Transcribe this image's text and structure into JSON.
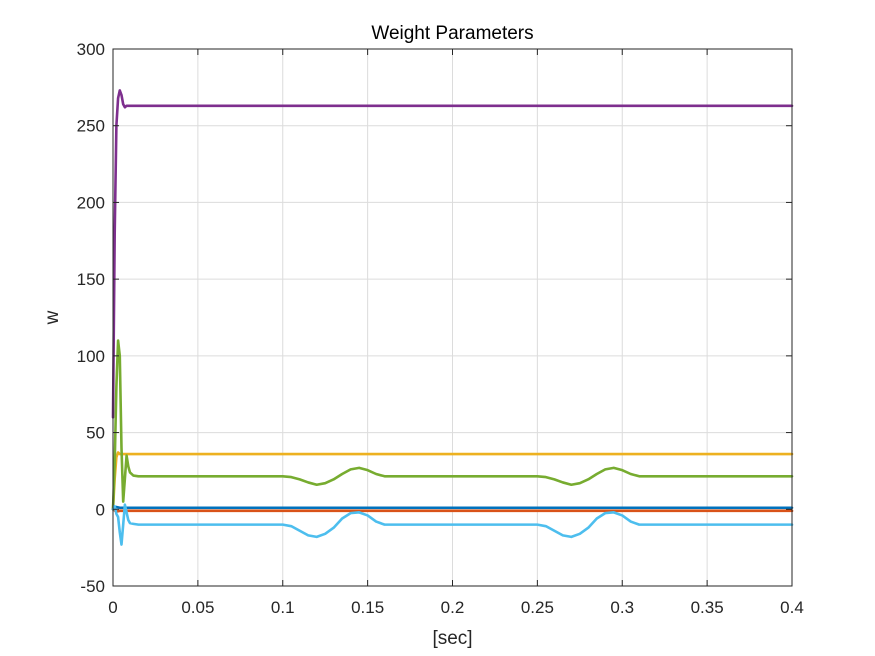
{
  "chart_data": {
    "type": "line",
    "title": "Weight Parameters",
    "xlabel": "[sec]",
    "ylabel": "w",
    "xlim": [
      0,
      0.4
    ],
    "ylim": [
      -50,
      300
    ],
    "xticks": [
      0,
      0.05,
      0.1,
      0.15,
      0.2,
      0.25,
      0.3,
      0.35,
      0.4
    ],
    "xtick_labels": [
      "0",
      "0.05",
      "0.1",
      "0.15",
      "0.2",
      "0.25",
      "0.3",
      "0.35",
      "0.4"
    ],
    "yticks": [
      -50,
      0,
      50,
      100,
      150,
      200,
      250,
      300
    ],
    "ytick_labels": [
      "-50",
      "0",
      "50",
      "100",
      "150",
      "200",
      "250",
      "300"
    ],
    "grid": true,
    "series": [
      {
        "color": "#0072BD",
        "x": [
          0,
          0.002,
          0.004,
          0.4
        ],
        "y": [
          0,
          1.5,
          1,
          1
        ]
      },
      {
        "color": "#D95319",
        "x": [
          0,
          0.002,
          0.004,
          0.4
        ],
        "y": [
          0,
          -1.5,
          -1,
          -1
        ]
      },
      {
        "color": "#EDB120",
        "x": [
          0,
          0.001,
          0.002,
          0.003,
          0.004,
          0.4
        ],
        "y": [
          0,
          20,
          34,
          37,
          36,
          36
        ]
      },
      {
        "color": "#7E2F8E",
        "x": [
          0,
          0.001,
          0.002,
          0.003,
          0.004,
          0.005,
          0.006,
          0.007,
          0.008,
          0.01,
          0.4
        ],
        "y": [
          60,
          180,
          250,
          268,
          273,
          270,
          264,
          262,
          263,
          263,
          263
        ]
      },
      {
        "color": "#77AC30",
        "x": [
          0,
          0.001,
          0.002,
          0.003,
          0.004,
          0.005,
          0.006,
          0.007,
          0.008,
          0.009,
          0.01,
          0.012,
          0.015,
          0.02,
          0.03,
          0.1,
          0.105,
          0.11,
          0.115,
          0.12,
          0.125,
          0.13,
          0.135,
          0.14,
          0.145,
          0.15,
          0.155,
          0.16,
          0.17,
          0.25,
          0.255,
          0.26,
          0.265,
          0.27,
          0.275,
          0.28,
          0.285,
          0.29,
          0.295,
          0.3,
          0.305,
          0.31,
          0.32,
          0.4
        ],
        "y": [
          0,
          30,
          80,
          110,
          100,
          40,
          5,
          20,
          35,
          28,
          24,
          22,
          21.5,
          21.5,
          21.5,
          21.5,
          21,
          19.5,
          17.5,
          16,
          17,
          19.5,
          23,
          26,
          27,
          25.5,
          23,
          21.5,
          21.5,
          21.5,
          21,
          19.5,
          17.5,
          16,
          17,
          19.5,
          23,
          26,
          27,
          25.5,
          23,
          21.5,
          21.5,
          21.5
        ]
      },
      {
        "color": "#4DBEEE",
        "x": [
          0,
          0.001,
          0.002,
          0.003,
          0.004,
          0.005,
          0.006,
          0.007,
          0.008,
          0.009,
          0.01,
          0.012,
          0.015,
          0.02,
          0.03,
          0.1,
          0.105,
          0.11,
          0.115,
          0.12,
          0.125,
          0.13,
          0.135,
          0.14,
          0.145,
          0.15,
          0.155,
          0.16,
          0.17,
          0.25,
          0.255,
          0.26,
          0.265,
          0.27,
          0.275,
          0.28,
          0.285,
          0.29,
          0.295,
          0.3,
          0.305,
          0.31,
          0.32,
          0.4
        ],
        "y": [
          0,
          2,
          -3,
          -5,
          -15,
          -23,
          -10,
          3,
          -2,
          -7,
          -9,
          -9.5,
          -10,
          -10,
          -10,
          -10,
          -11,
          -14,
          -17,
          -18,
          -16,
          -12,
          -6,
          -2.5,
          -2,
          -4,
          -8,
          -10,
          -10,
          -10,
          -11,
          -14,
          -17,
          -18,
          -16,
          -12,
          -6,
          -2.5,
          -2,
          -4,
          -8,
          -10,
          -10,
          -10
        ]
      }
    ]
  }
}
